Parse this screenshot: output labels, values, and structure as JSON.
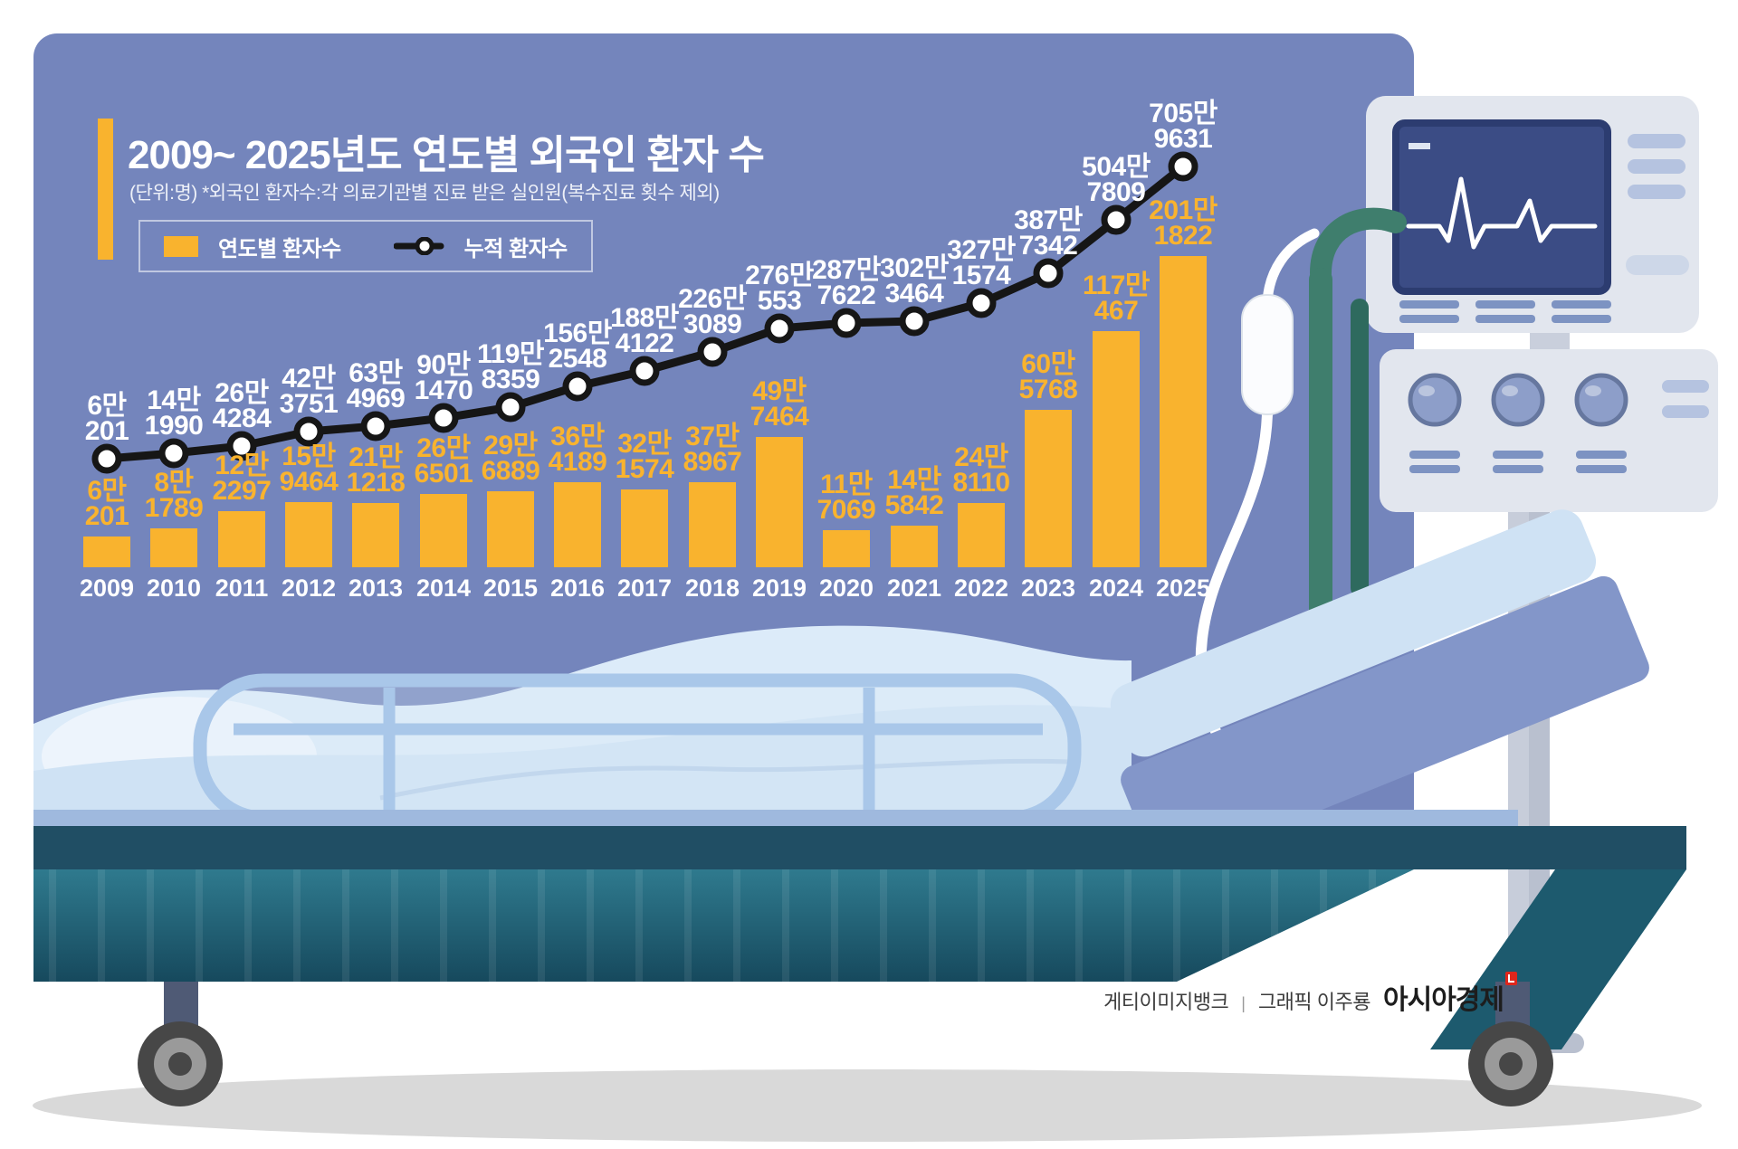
{
  "infographic": {
    "title": "2009~ 2025년도 연도별 외국인 환자 수",
    "subtitle": "(단위:명) *외국인 환자수:각 의료기관별 진료 받은 실인원(복수진료 횟수 제외)",
    "legend": {
      "bar": "연도별 환자수",
      "line": "누적 환자수"
    },
    "credits": {
      "source": "게티이미지뱅크",
      "divider": "|",
      "graphic_by": "그래픽 이주룡",
      "brand": "아시아경제"
    }
  },
  "colors": {
    "panel_background": "#7485bc",
    "bar": "#f9b32e",
    "cumulative_line": "#161616",
    "point_fill": "#ffffff",
    "bar_value_text": "#f9b32e",
    "cumulative_value_text": "#ffffff",
    "year_text": "#ffffff",
    "bed_frame": "#204e64",
    "bed_skirt_teal": "#2c7086",
    "blanket": "#cfe2f4",
    "equipment_gray": "#e2e6ee",
    "screen_navy": "#3b4c85",
    "iv_pole_teal": "#3f7e6d"
  },
  "chart_data": {
    "type": "bar",
    "combo": "bar + cumulative line",
    "unit": "명",
    "grid": false,
    "axes": "none (data labels printed at each point)",
    "legend_position": "top-left",
    "categories": [
      2009,
      2010,
      2011,
      2012,
      2013,
      2014,
      2015,
      2016,
      2017,
      2018,
      2019,
      2020,
      2021,
      2022,
      2023,
      2024,
      2025
    ],
    "series": [
      {
        "name": "연도별 환자수",
        "type": "bar",
        "color": "#f9b32e",
        "values": [
          60201,
          81789,
          122297,
          159464,
          211218,
          266501,
          296889,
          364189,
          321574,
          378967,
          497464,
          117069,
          145842,
          248110,
          605768,
          1170467,
          2011822
        ],
        "labels": [
          [
            "6만",
            "201"
          ],
          [
            "8만",
            "1789"
          ],
          [
            "12만",
            "2297"
          ],
          [
            "15만",
            "9464"
          ],
          [
            "21만",
            "1218"
          ],
          [
            "26만",
            "6501"
          ],
          [
            "29만",
            "6889"
          ],
          [
            "36만",
            "4189"
          ],
          [
            "32만",
            "1574"
          ],
          [
            "37만",
            "8967"
          ],
          [
            "49만",
            "7464"
          ],
          [
            "11만",
            "7069"
          ],
          [
            "14만",
            "5842"
          ],
          [
            "24만",
            "8110"
          ],
          [
            "60만",
            "5768"
          ],
          [
            "117만",
            "467"
          ],
          [
            "201만",
            "1822"
          ]
        ]
      },
      {
        "name": "누적 환자수",
        "type": "line",
        "color": "#161616",
        "values": [
          60201,
          141990,
          264284,
          423751,
          634969,
          901470,
          1198359,
          1562548,
          1884122,
          2263089,
          2760553,
          2877622,
          3023464,
          3271574,
          3877342,
          5047809,
          7059631
        ],
        "labels": [
          [
            "6만",
            "201"
          ],
          [
            "14만",
            "1990"
          ],
          [
            "26만",
            "4284"
          ],
          [
            "42만",
            "3751"
          ],
          [
            "63만",
            "4969"
          ],
          [
            "90만",
            "1470"
          ],
          [
            "119만",
            "8359"
          ],
          [
            "156만",
            "2548"
          ],
          [
            "188만",
            "4122"
          ],
          [
            "226만",
            "3089"
          ],
          [
            "276만",
            "553"
          ],
          [
            "287만",
            "7622"
          ],
          [
            "302만",
            "3464"
          ],
          [
            "327만",
            "1574"
          ],
          [
            "387만",
            "7342"
          ],
          [
            "504만",
            "7809"
          ],
          [
            "705만",
            "9631"
          ]
        ]
      }
    ]
  }
}
